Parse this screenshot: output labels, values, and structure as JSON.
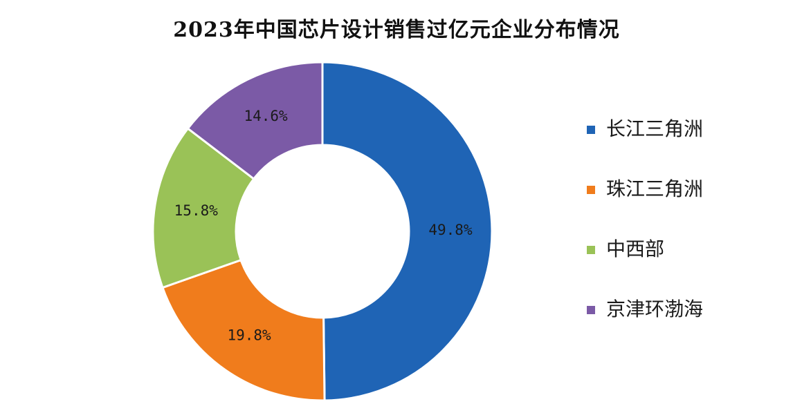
{
  "chart_data": {
    "type": "pie",
    "variant": "donut",
    "title": "2023年中国芯片设计销售过亿元企业分布情况",
    "categories": [
      "长江三角洲",
      "珠江三角洲",
      "中西部",
      "京津环渤海"
    ],
    "values": [
      49.8,
      19.8,
      15.8,
      14.6
    ],
    "value_labels": [
      "49.8%",
      "19.8%",
      "15.8%",
      "14.6%"
    ],
    "unit": "%",
    "colors": [
      "#1f64b5",
      "#f07c1c",
      "#9ac257",
      "#7b5aa6"
    ],
    "legend_placement": "right"
  }
}
